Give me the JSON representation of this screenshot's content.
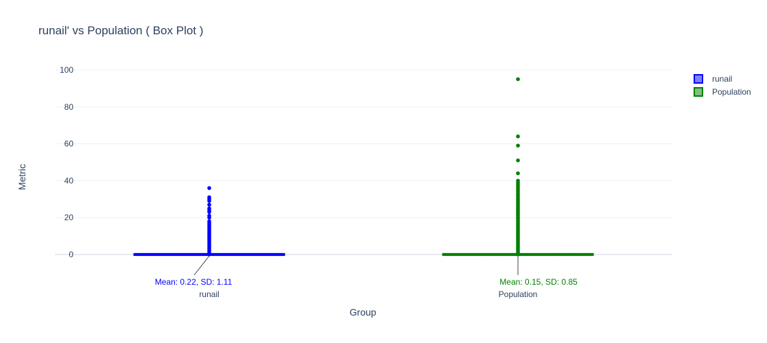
{
  "chart_data": {
    "type": "box",
    "title": "runail' vs Population ( Box Plot )",
    "xlabel": "Group",
    "ylabel": "Metric",
    "ylim": [
      -10,
      102
    ],
    "yticks": [
      0,
      20,
      40,
      60,
      80,
      100
    ],
    "grid": true,
    "legend_placement": "top-right",
    "categories": [
      "runail",
      "Population"
    ],
    "series": [
      {
        "name": "runail",
        "color": "#0000ff",
        "fill": "#7f7fff",
        "annotation": "Mean: 0.22, SD: 1.11",
        "outliers": [
          36,
          31,
          30,
          29,
          27,
          25,
          24,
          23,
          21,
          20,
          18,
          17,
          16,
          15,
          14,
          13,
          12,
          11,
          10,
          9,
          8,
          7,
          6,
          5,
          4,
          3,
          2,
          1
        ]
      },
      {
        "name": "Population",
        "color": "#008000",
        "fill": "#7fbf7f",
        "annotation": "Mean: 0.15, SD: 0.85",
        "outliers": [
          95,
          64,
          59,
          51,
          44,
          40,
          39,
          38,
          37,
          36,
          35,
          34,
          33,
          32,
          31,
          30,
          29,
          28,
          27,
          26,
          25,
          24,
          23,
          22,
          21,
          20,
          19,
          18,
          17,
          16,
          15,
          14,
          13,
          12,
          11,
          10,
          9,
          8,
          7,
          6,
          5,
          4,
          3,
          2,
          1
        ]
      }
    ]
  }
}
